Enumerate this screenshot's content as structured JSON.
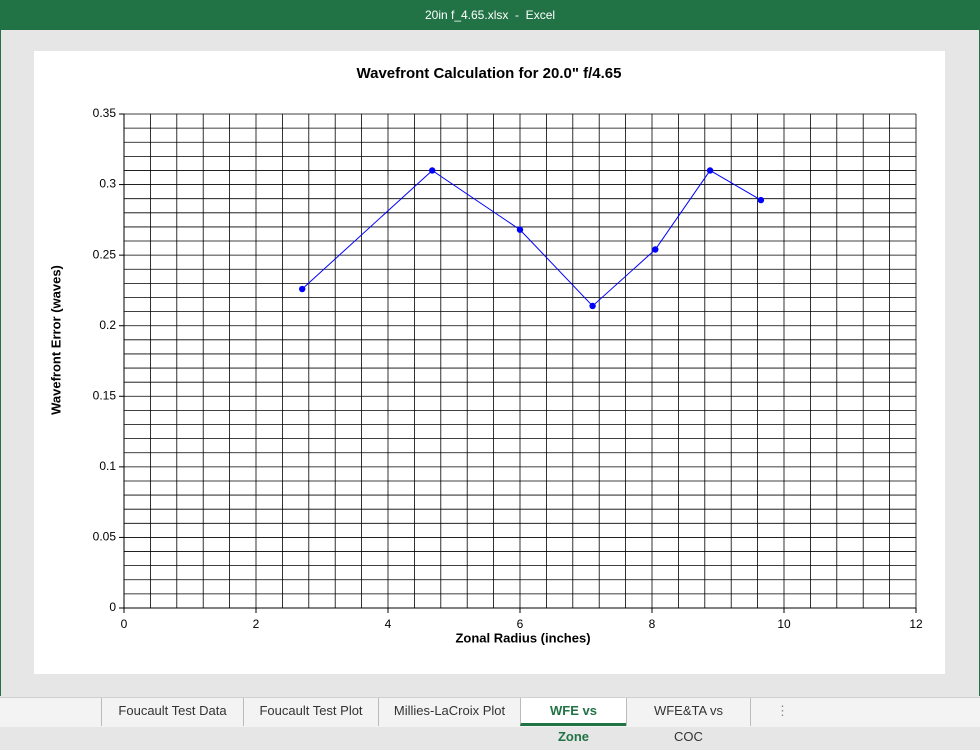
{
  "window": {
    "title": "20in f_4.65.xlsx  -  Excel"
  },
  "tabs": [
    "Foucault Test Data",
    "Foucault Test Plot",
    "Millies-LaCroix Plot",
    "WFE vs Zone",
    "WFE&TA vs COC"
  ],
  "active_tab": 3,
  "tabs_more": "⋮",
  "chart_data": {
    "type": "scatter-line",
    "title": "Wavefront Calculation for 20.0\" f/4.65",
    "x_label": "Zonal Radius (inches)",
    "y_label": "Wavefront Error (waves)",
    "x": [
      2.7,
      4.67,
      6.0,
      7.1,
      8.05,
      8.88,
      9.65
    ],
    "series": [
      {
        "color": "#0000ff",
        "values": [
          0.226,
          0.31,
          0.268,
          0.214,
          0.254,
          0.31,
          0.289
        ]
      }
    ],
    "xlim": [
      0,
      12
    ],
    "xticks": [
      0,
      2,
      4,
      6,
      8,
      10,
      12
    ],
    "ylim": [
      0,
      0.35
    ],
    "yticks": [
      0,
      0.05,
      0.1,
      0.15,
      0.2,
      0.25,
      0.3,
      0.35
    ],
    "grid": true,
    "minor_grid": {
      "x": 0.4,
      "y": 0.01
    }
  }
}
